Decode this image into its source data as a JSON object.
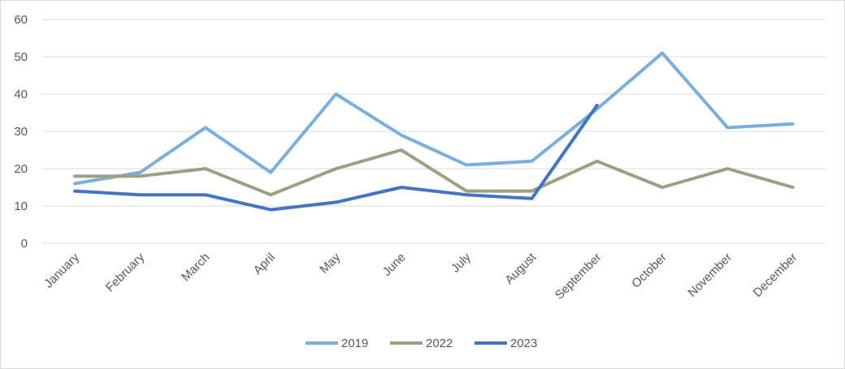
{
  "chart_data": {
    "type": "line",
    "title": "",
    "xlabel": "",
    "ylabel": "",
    "ylim": [
      0,
      60
    ],
    "yticks": [
      "0",
      "10",
      "20",
      "30",
      "40",
      "50",
      "60"
    ],
    "grid": true,
    "legend": "bottom",
    "categories": [
      "January",
      "February",
      "March",
      "April",
      "May",
      "June",
      "July",
      "August",
      "September",
      "October",
      "November",
      "December"
    ],
    "series": [
      {
        "name": "2019",
        "color": "#7aaedc",
        "values": [
          16,
          19,
          31,
          19,
          40,
          29,
          21,
          22,
          36,
          51,
          31,
          32
        ]
      },
      {
        "name": "2022",
        "color": "#9c9f80",
        "values": [
          18,
          18,
          20,
          13,
          20,
          25,
          14,
          14,
          22,
          15,
          20,
          15
        ]
      },
      {
        "name": "2023",
        "color": "#4472c4",
        "values": [
          14,
          13,
          13,
          9,
          11,
          15,
          13,
          12,
          37,
          null,
          null,
          null
        ]
      }
    ]
  }
}
